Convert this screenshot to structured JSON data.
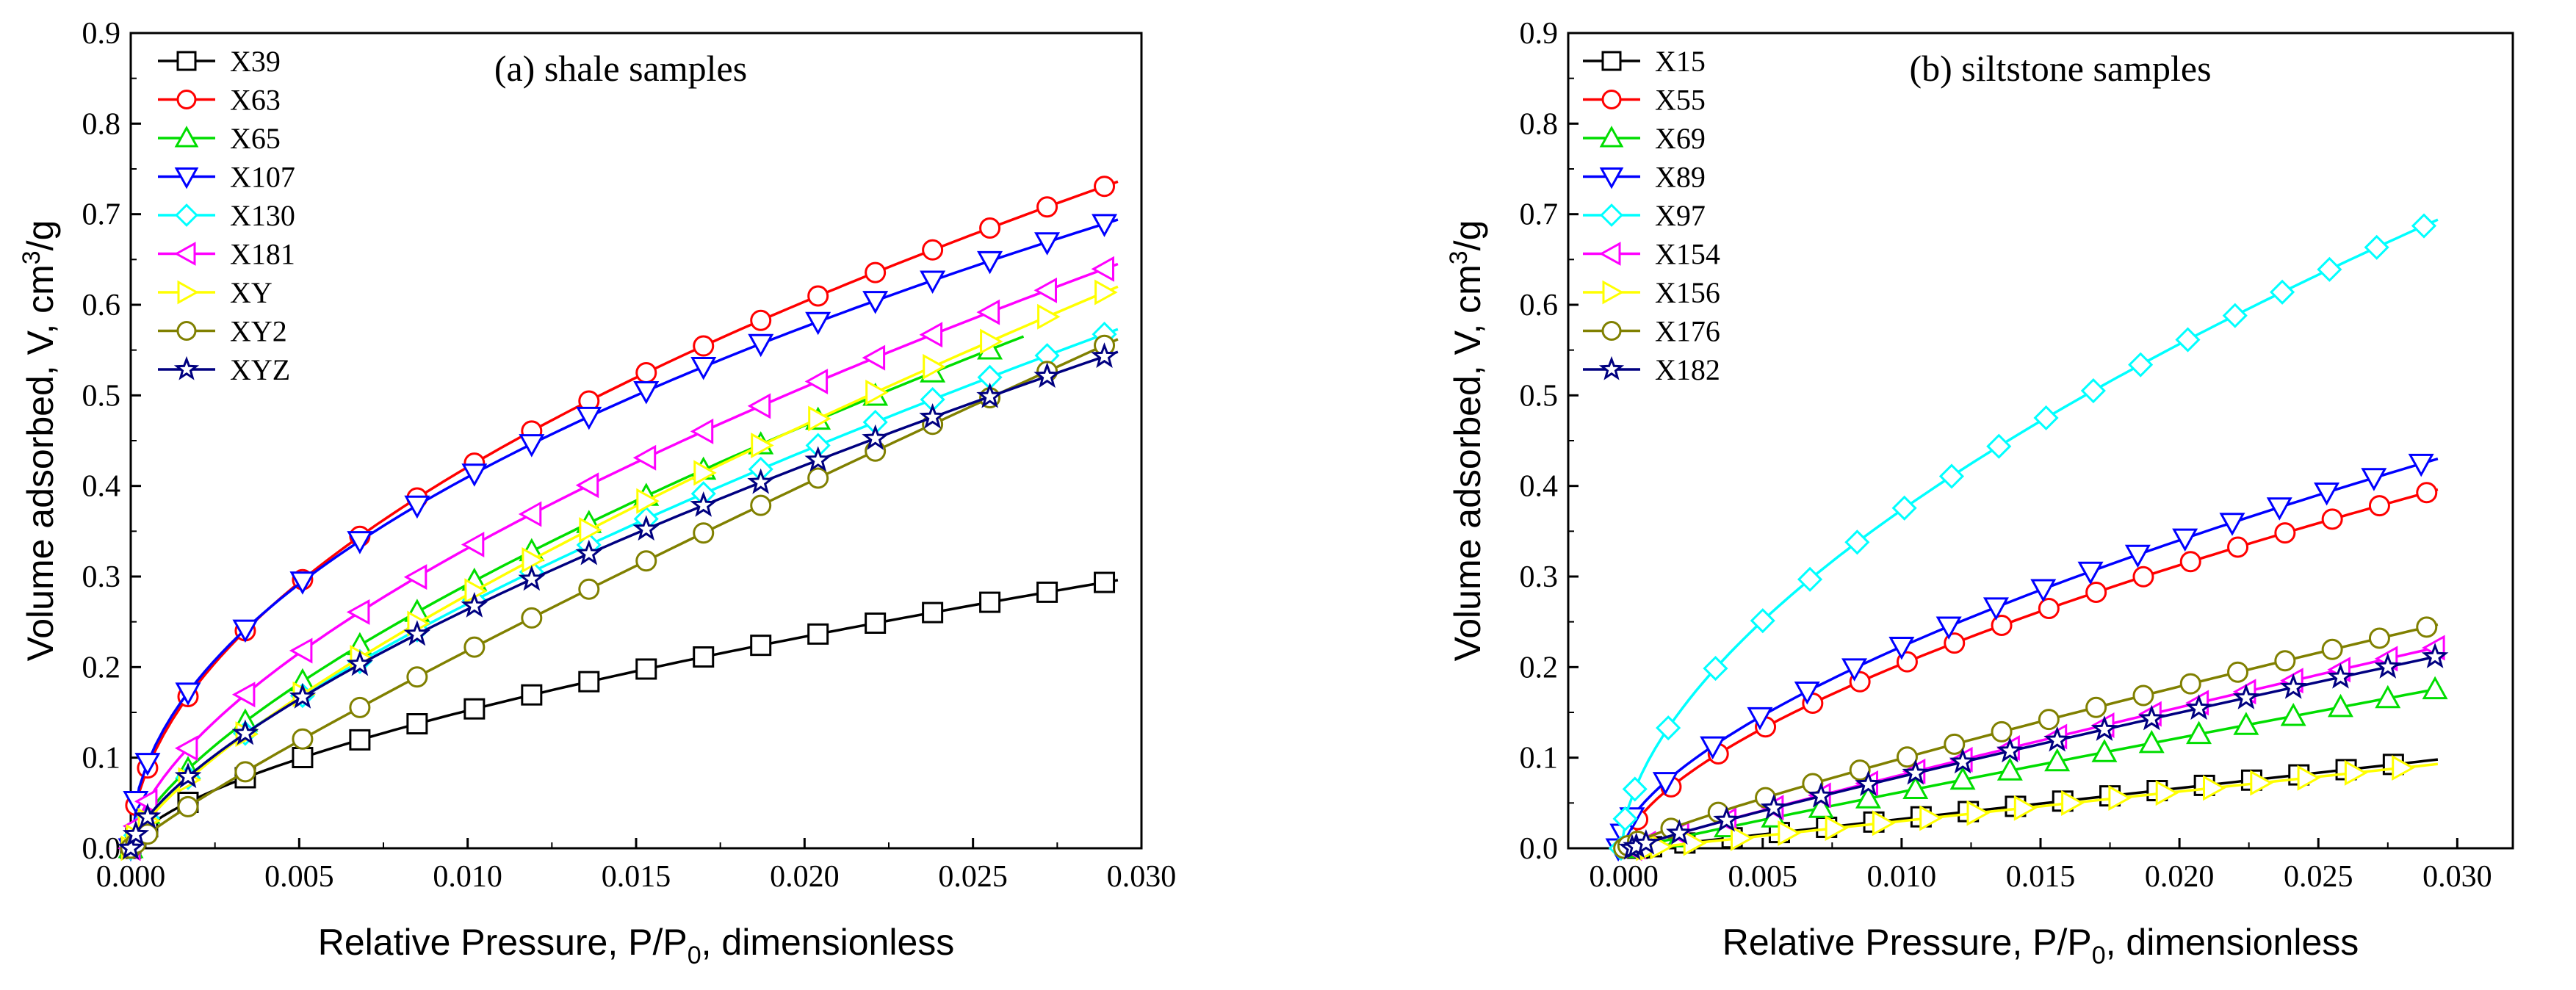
{
  "chart_data": [
    {
      "type": "line",
      "title": "(a) shale samples",
      "xlabel": "Relative Pressure, P/P",
      "xlabel_sub": "0",
      "xlabel_suffix": ", dimensionless",
      "ylabel": "Volume adsorbed, V, cm",
      "ylabel_sup": "3",
      "ylabel_suffix": "/g",
      "xlim": [
        0.0,
        0.03
      ],
      "ylim": [
        0.0,
        0.9
      ],
      "xticks": [
        "0.000",
        "0.005",
        "0.010",
        "0.015",
        "0.020",
        "0.025",
        "0.030"
      ],
      "yticks": [
        "0.0",
        "0.1",
        "0.2",
        "0.3",
        "0.4",
        "0.5",
        "0.6",
        "0.7",
        "0.8",
        "0.9"
      ],
      "legend_position": "top-left",
      "series": [
        {
          "name": "X39",
          "color": "#000000",
          "marker": "square",
          "final": 0.296,
          "p": 0.62
        },
        {
          "name": "X63",
          "color": "#ff0000",
          "marker": "circle",
          "final": 0.736,
          "p": 0.52
        },
        {
          "name": "X65",
          "color": "#00dd00",
          "marker": "triangle-up",
          "final": 0.605,
          "p": 0.68,
          "xmax": 0.0265
        },
        {
          "name": "X107",
          "color": "#0000ff",
          "marker": "triangle-down",
          "final": 0.694,
          "p": 0.49
        },
        {
          "name": "X130",
          "color": "#00ffff",
          "marker": "diamond",
          "final": 0.573,
          "p": 0.7
        },
        {
          "name": "X181",
          "color": "#ff00ff",
          "marker": "triangle-left",
          "final": 0.645,
          "p": 0.62
        },
        {
          "name": "XY",
          "color": "#ffff00",
          "marker": "triangle-right",
          "final": 0.62,
          "p": 0.74
        },
        {
          "name": "XY2",
          "color": "#808000",
          "marker": "circle",
          "final": 0.562,
          "p": 0.88
        },
        {
          "name": "XYZ",
          "color": "#000080",
          "marker": "star",
          "final": 0.548,
          "p": 0.68
        }
      ]
    },
    {
      "type": "line",
      "title": "(b) siltstone samples",
      "xlabel": "Relative Pressure, P/P",
      "xlabel_sub": "0",
      "xlabel_suffix": ", dimensionless",
      "ylabel": "Volume adsorbed, V, cm",
      "ylabel_sup": "3",
      "ylabel_suffix": "/g",
      "xlim": [
        -0.002,
        0.032
      ],
      "ylim": [
        0.0,
        0.9
      ],
      "xticks": [
        "0.000",
        "0.005",
        "0.010",
        "0.015",
        "0.020",
        "0.025",
        "0.030"
      ],
      "yticks": [
        "0.0",
        "0.1",
        "0.2",
        "0.3",
        "0.4",
        "0.5",
        "0.6",
        "0.7",
        "0.8",
        "0.9"
      ],
      "legend_position": "top-left",
      "series": [
        {
          "name": "X15",
          "color": "#000000",
          "marker": "square",
          "final": 0.098,
          "p": 1.0,
          "x0": 0.0005
        },
        {
          "name": "X55",
          "color": "#ff0000",
          "marker": "circle",
          "final": 0.396,
          "p": 0.62,
          "x0": 0.0
        },
        {
          "name": "X69",
          "color": "#00dd00",
          "marker": "triangle-up",
          "final": 0.176,
          "p": 0.95,
          "x0": 0.0003
        },
        {
          "name": "X89",
          "color": "#0000ff",
          "marker": "triangle-down",
          "final": 0.43,
          "p": 0.62,
          "x0": -0.0002
        },
        {
          "name": "X97",
          "color": "#00ffff",
          "marker": "diamond",
          "final": 0.694,
          "p": 0.58,
          "x0": -0.0001
        },
        {
          "name": "X154",
          "color": "#ff00ff",
          "marker": "triangle-left",
          "final": 0.222,
          "p": 0.92,
          "x0": 0.0003
        },
        {
          "name": "X156",
          "color": "#ffff00",
          "marker": "triangle-right",
          "final": 0.093,
          "p": 1.0,
          "x0": 0.0008
        },
        {
          "name": "X176",
          "color": "#808000",
          "marker": "circle",
          "final": 0.247,
          "p": 0.85,
          "x0": 0.0
        },
        {
          "name": "X182",
          "color": "#000080",
          "marker": "star",
          "final": 0.212,
          "p": 0.9,
          "x0": 0.0003
        }
      ]
    }
  ]
}
